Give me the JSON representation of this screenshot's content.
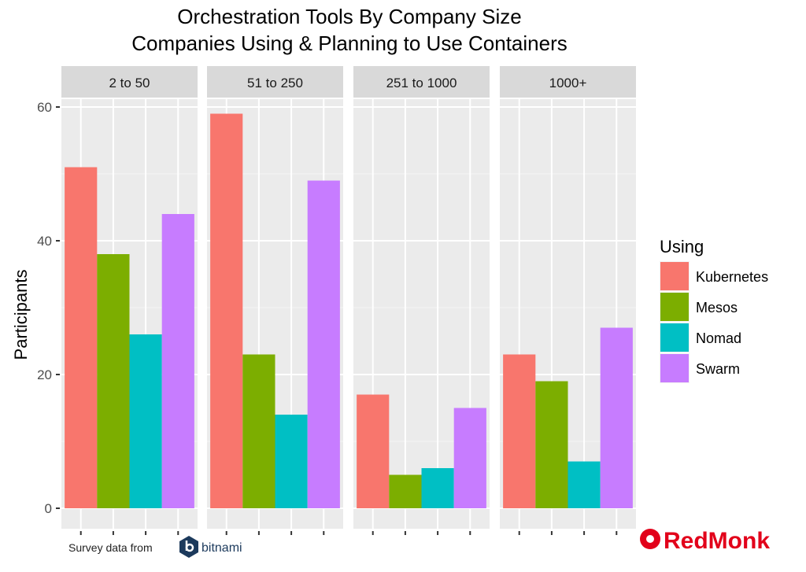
{
  "chart_data": {
    "type": "bar",
    "title": "Orchestration Tools By Company Size",
    "subtitle": "Companies Using & Planning to Use Containers",
    "ylabel": "Participants",
    "xlabel": "",
    "ylim": [
      0,
      64
    ],
    "yticks": [
      0,
      20,
      40,
      60
    ],
    "grid": true,
    "legend": {
      "title": "Using",
      "position": "right"
    },
    "categories": [
      "Kubernetes",
      "Mesos",
      "Nomad",
      "Swarm"
    ],
    "colors": [
      "#F8766D",
      "#7CAE00",
      "#00BFC4",
      "#C77CFF"
    ],
    "panels": [
      {
        "label": "2 to 50",
        "values": [
          51,
          38,
          26,
          44
        ]
      },
      {
        "label": "51 to 250",
        "values": [
          59,
          23,
          14,
          49
        ]
      },
      {
        "label": "251 to 1000",
        "values": [
          17,
          5,
          6,
          15
        ]
      },
      {
        "label": "1000+",
        "values": [
          23,
          19,
          7,
          27
        ]
      }
    ]
  },
  "footer": {
    "source_text": "Survey data from",
    "source_logo": "bitnami",
    "brand_logo": "RedMonk"
  }
}
